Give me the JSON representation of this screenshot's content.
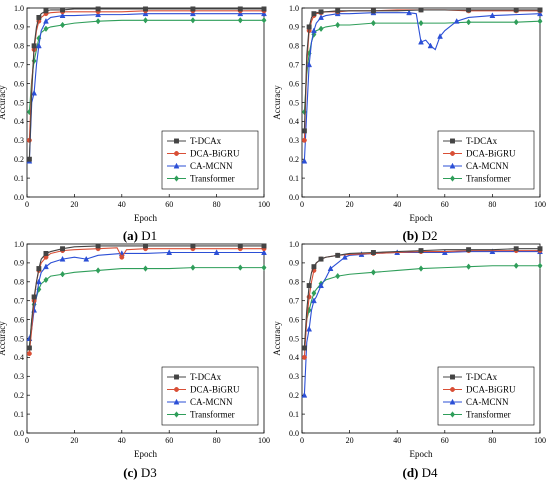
{
  "legend": {
    "labels": [
      "T-DCAx",
      "DCA-BiGRU",
      "CA-MCNN",
      "Transformer"
    ]
  },
  "colors": {
    "T-DCAx": "#444444",
    "DCA-BiGRU": "#d94f36",
    "CA-MCNN": "#2b4fd6",
    "Transformer": "#2f9e5a"
  },
  "chart_data": [
    {
      "type": "line",
      "caption_letter": "(a)",
      "caption_rest": " D1",
      "xlabel": "Epoch",
      "ylabel": "Accuracy",
      "xlim": [
        0,
        100
      ],
      "ylim": [
        0,
        1.0
      ],
      "xticks": [
        "0",
        "20",
        "40",
        "60",
        "80",
        "100"
      ],
      "yticks": [
        "0.0",
        "0.1",
        "0.2",
        "0.3",
        "0.4",
        "0.5",
        "0.6",
        "0.7",
        "0.8",
        "0.9",
        "1.0"
      ],
      "legend_position": "bottom-right",
      "series": [
        {
          "name": "T-DCAx",
          "x": [
            1,
            2,
            3,
            4,
            5,
            6,
            8,
            10,
            15,
            20,
            30,
            40,
            50,
            60,
            70,
            80,
            90,
            100
          ],
          "y": [
            0.2,
            0.55,
            0.8,
            0.9,
            0.95,
            0.97,
            0.985,
            0.99,
            0.99,
            0.995,
            0.995,
            0.995,
            0.995,
            0.995,
            0.995,
            0.995,
            0.995,
            0.995
          ]
        },
        {
          "name": "DCA-BiGRU",
          "x": [
            1,
            2,
            3,
            4,
            5,
            6,
            8,
            10,
            15,
            20,
            30,
            40,
            50,
            60,
            70,
            80,
            90,
            100
          ],
          "y": [
            0.3,
            0.6,
            0.78,
            0.88,
            0.93,
            0.95,
            0.97,
            0.975,
            0.98,
            0.98,
            0.98,
            0.98,
            0.985,
            0.985,
            0.985,
            0.985,
            0.985,
            0.985
          ]
        },
        {
          "name": "CA-MCNN",
          "x": [
            1,
            2,
            3,
            4,
            5,
            6,
            8,
            10,
            15,
            20,
            30,
            40,
            50,
            60,
            70,
            80,
            90,
            100
          ],
          "y": [
            0.19,
            0.5,
            0.55,
            0.7,
            0.8,
            0.88,
            0.93,
            0.95,
            0.96,
            0.96,
            0.965,
            0.965,
            0.97,
            0.97,
            0.97,
            0.97,
            0.97,
            0.97
          ]
        },
        {
          "name": "Transformer",
          "x": [
            1,
            2,
            3,
            4,
            5,
            6,
            8,
            10,
            15,
            20,
            30,
            40,
            50,
            60,
            70,
            80,
            90,
            100
          ],
          "y": [
            0.45,
            0.62,
            0.72,
            0.78,
            0.84,
            0.87,
            0.89,
            0.9,
            0.91,
            0.92,
            0.93,
            0.935,
            0.935,
            0.935,
            0.935,
            0.935,
            0.935,
            0.935
          ]
        }
      ]
    },
    {
      "type": "line",
      "caption_letter": "(b)",
      "caption_rest": " D2",
      "xlabel": "Epoch",
      "ylabel": "Accuracy",
      "xlim": [
        0,
        100
      ],
      "ylim": [
        0,
        1.0
      ],
      "xticks": [
        "0",
        "20",
        "40",
        "60",
        "80",
        "100"
      ],
      "yticks": [
        "0.0",
        "0.1",
        "0.2",
        "0.3",
        "0.4",
        "0.5",
        "0.6",
        "0.7",
        "0.8",
        "0.9",
        "1.0"
      ],
      "legend_position": "bottom-right",
      "series": [
        {
          "name": "T-DCAx",
          "x": [
            1,
            2,
            3,
            4,
            5,
            6,
            8,
            10,
            15,
            20,
            30,
            40,
            50,
            60,
            70,
            80,
            90,
            100
          ],
          "y": [
            0.35,
            0.75,
            0.9,
            0.95,
            0.97,
            0.975,
            0.98,
            0.98,
            0.985,
            0.985,
            0.985,
            0.985,
            0.99,
            0.99,
            0.99,
            0.99,
            0.99,
            0.99
          ]
        },
        {
          "name": "DCA-BiGRU",
          "x": [
            1,
            2,
            3,
            4,
            5,
            6,
            8,
            10,
            15,
            20,
            30,
            40,
            50,
            60,
            70,
            80,
            90,
            100
          ],
          "y": [
            0.3,
            0.7,
            0.88,
            0.93,
            0.96,
            0.97,
            0.975,
            0.98,
            0.98,
            0.985,
            0.985,
            0.99,
            0.99,
            0.99,
            0.985,
            0.985,
            0.985,
            0.985
          ]
        },
        {
          "name": "CA-MCNN",
          "x": [
            1,
            2,
            3,
            4,
            5,
            6,
            8,
            10,
            15,
            20,
            30,
            40,
            45,
            48,
            50,
            52,
            54,
            56,
            58,
            60,
            65,
            70,
            80,
            90,
            100
          ],
          "y": [
            0.19,
            0.45,
            0.7,
            0.82,
            0.88,
            0.92,
            0.95,
            0.96,
            0.97,
            0.97,
            0.975,
            0.975,
            0.975,
            0.97,
            0.82,
            0.83,
            0.8,
            0.78,
            0.85,
            0.88,
            0.93,
            0.95,
            0.96,
            0.965,
            0.97
          ]
        },
        {
          "name": "Transformer",
          "x": [
            1,
            2,
            3,
            4,
            5,
            6,
            8,
            10,
            15,
            20,
            30,
            40,
            50,
            60,
            70,
            80,
            90,
            100
          ],
          "y": [
            0.45,
            0.65,
            0.76,
            0.82,
            0.86,
            0.88,
            0.89,
            0.9,
            0.91,
            0.91,
            0.92,
            0.92,
            0.92,
            0.92,
            0.925,
            0.925,
            0.925,
            0.93
          ]
        }
      ]
    },
    {
      "type": "line",
      "caption_letter": "(c)",
      "caption_rest": " D3",
      "xlabel": "Epoch",
      "ylabel": "Accuracy",
      "xlim": [
        0,
        100
      ],
      "ylim": [
        0,
        1.0
      ],
      "xticks": [
        "0",
        "20",
        "40",
        "60",
        "80",
        "100"
      ],
      "yticks": [
        "0.0",
        "0.1",
        "0.2",
        "0.3",
        "0.4",
        "0.5",
        "0.6",
        "0.7",
        "0.8",
        "0.9",
        "1.0"
      ],
      "legend_position": "bottom-right",
      "series": [
        {
          "name": "T-DCAx",
          "x": [
            1,
            2,
            3,
            4,
            5,
            6,
            8,
            10,
            15,
            20,
            30,
            40,
            50,
            60,
            70,
            80,
            90,
            100
          ],
          "y": [
            0.45,
            0.6,
            0.72,
            0.8,
            0.87,
            0.92,
            0.95,
            0.96,
            0.975,
            0.985,
            0.99,
            0.99,
            0.99,
            0.99,
            0.99,
            0.99,
            0.99,
            0.99
          ]
        },
        {
          "name": "DCA-BiGRU",
          "x": [
            1,
            2,
            3,
            4,
            5,
            6,
            8,
            10,
            15,
            20,
            30,
            38,
            40,
            42,
            50,
            60,
            70,
            80,
            90,
            100
          ],
          "y": [
            0.42,
            0.55,
            0.7,
            0.8,
            0.86,
            0.9,
            0.93,
            0.95,
            0.965,
            0.97,
            0.975,
            0.98,
            0.93,
            0.97,
            0.975,
            0.975,
            0.975,
            0.975,
            0.975,
            0.975
          ]
        },
        {
          "name": "CA-MCNN",
          "x": [
            1,
            2,
            3,
            4,
            5,
            6,
            8,
            10,
            15,
            20,
            25,
            30,
            40,
            50,
            60,
            70,
            80,
            90,
            100
          ],
          "y": [
            0.5,
            0.55,
            0.65,
            0.72,
            0.8,
            0.85,
            0.88,
            0.9,
            0.92,
            0.93,
            0.92,
            0.94,
            0.95,
            0.95,
            0.955,
            0.955,
            0.955,
            0.955,
            0.955
          ]
        },
        {
          "name": "Transformer",
          "x": [
            1,
            2,
            3,
            4,
            5,
            6,
            8,
            10,
            15,
            20,
            30,
            40,
            50,
            60,
            70,
            80,
            90,
            100
          ],
          "y": [
            0.45,
            0.6,
            0.68,
            0.72,
            0.76,
            0.79,
            0.81,
            0.83,
            0.84,
            0.85,
            0.86,
            0.87,
            0.87,
            0.87,
            0.875,
            0.875,
            0.875,
            0.875
          ]
        }
      ]
    },
    {
      "type": "line",
      "caption_letter": "(d)",
      "caption_rest": " D4",
      "xlabel": "Epoch",
      "ylabel": "Accuracy",
      "xlim": [
        0,
        100
      ],
      "ylim": [
        0,
        1.0
      ],
      "xticks": [
        "0",
        "20",
        "40",
        "60",
        "80",
        "100"
      ],
      "yticks": [
        "0.0",
        "0.1",
        "0.2",
        "0.3",
        "0.4",
        "0.5",
        "0.6",
        "0.7",
        "0.8",
        "0.9",
        "1.0"
      ],
      "legend_position": "bottom-right",
      "series": [
        {
          "name": "T-DCAx",
          "x": [
            1,
            2,
            3,
            4,
            5,
            6,
            8,
            10,
            15,
            20,
            30,
            40,
            50,
            60,
            70,
            80,
            90,
            100
          ],
          "y": [
            0.45,
            0.65,
            0.78,
            0.85,
            0.88,
            0.9,
            0.92,
            0.93,
            0.94,
            0.95,
            0.955,
            0.96,
            0.965,
            0.97,
            0.97,
            0.97,
            0.975,
            0.975
          ]
        },
        {
          "name": "DCA-BiGRU",
          "x": [
            1,
            2,
            3,
            4,
            5,
            6,
            8,
            10,
            15,
            20,
            30,
            40,
            50,
            60,
            70,
            80,
            90,
            100
          ],
          "y": [
            0.4,
            0.6,
            0.72,
            0.8,
            0.86,
            0.9,
            0.92,
            0.93,
            0.94,
            0.945,
            0.95,
            0.955,
            0.96,
            0.96,
            0.965,
            0.965,
            0.965,
            0.965
          ]
        },
        {
          "name": "CA-MCNN",
          "x": [
            1,
            2,
            3,
            4,
            5,
            6,
            8,
            10,
            12,
            15,
            18,
            20,
            25,
            30,
            40,
            50,
            60,
            70,
            80,
            90,
            100
          ],
          "y": [
            0.2,
            0.48,
            0.55,
            0.65,
            0.7,
            0.72,
            0.78,
            0.82,
            0.87,
            0.9,
            0.93,
            0.94,
            0.945,
            0.95,
            0.955,
            0.955,
            0.955,
            0.96,
            0.96,
            0.96,
            0.96
          ]
        },
        {
          "name": "Transformer",
          "x": [
            1,
            2,
            3,
            4,
            5,
            6,
            8,
            10,
            15,
            20,
            30,
            40,
            50,
            60,
            70,
            80,
            90,
            100
          ],
          "y": [
            0.45,
            0.6,
            0.65,
            0.7,
            0.74,
            0.76,
            0.79,
            0.81,
            0.83,
            0.84,
            0.85,
            0.86,
            0.87,
            0.875,
            0.88,
            0.885,
            0.885,
            0.885
          ]
        }
      ]
    }
  ]
}
